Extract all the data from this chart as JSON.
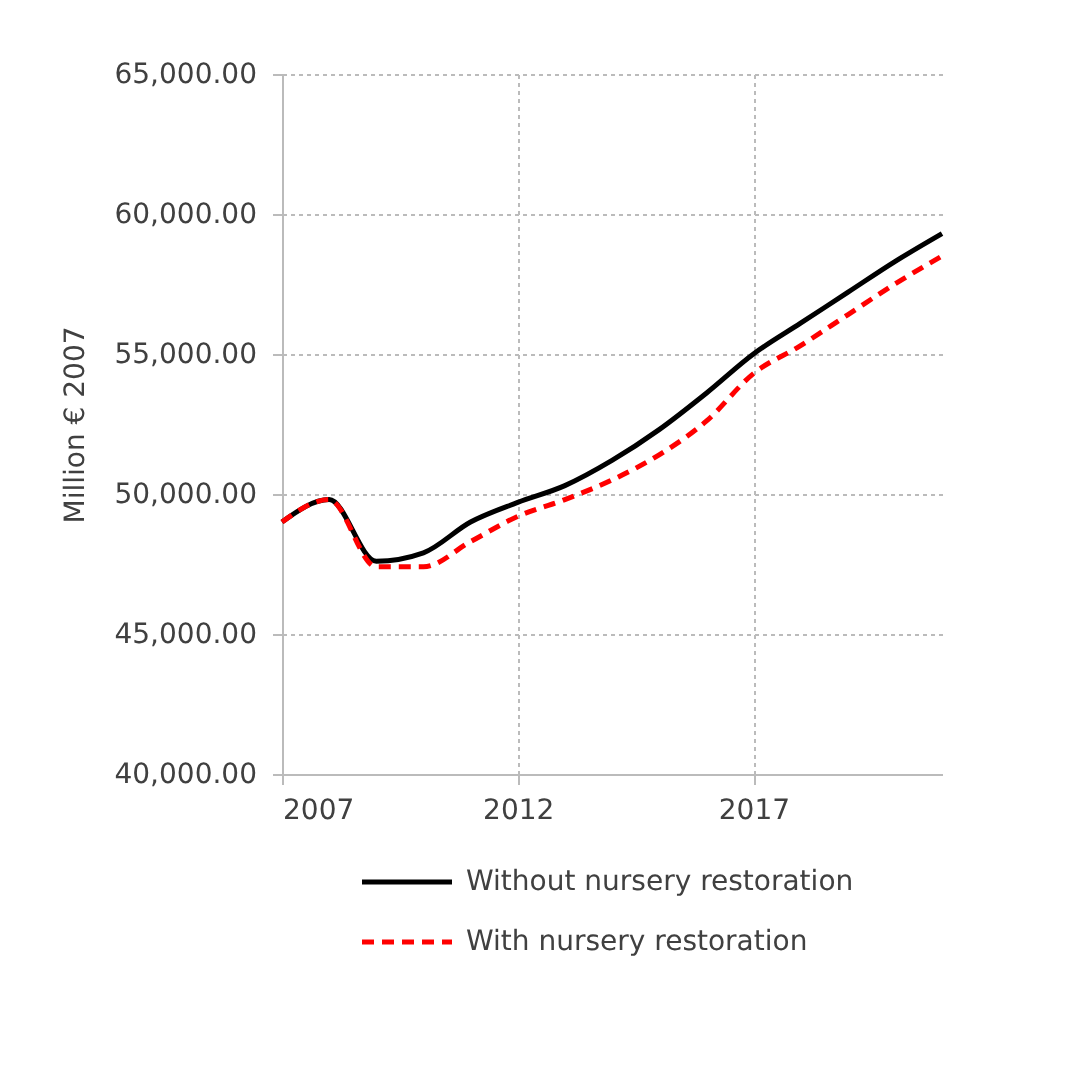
{
  "chart_data": {
    "type": "line",
    "ylabel": "Million € 2007",
    "x": [
      2007,
      2008,
      2009,
      2010,
      2011,
      2012,
      2013,
      2014,
      2015,
      2016,
      2017,
      2018,
      2019,
      2020,
      2021
    ],
    "series": [
      {
        "name": "Without nursery restoration",
        "color": "#000000",
        "line_style": "solid",
        "values": [
          49000,
          49800,
          47600,
          47900,
          49000,
          49700,
          50300,
          51200,
          52300,
          53600,
          55000,
          56100,
          57200,
          58300,
          59300
        ]
      },
      {
        "name": "With nursery restoration",
        "color": "#ff0000",
        "line_style": "dashed",
        "values": [
          49000,
          49800,
          47400,
          47400,
          48300,
          49200,
          49800,
          50500,
          51400,
          52600,
          54300,
          55300,
          56400,
          57500,
          58500
        ]
      }
    ],
    "xlim": [
      2007,
      2021
    ],
    "xticks": [
      2007,
      2012,
      2017
    ],
    "ylim": [
      40000,
      65000
    ],
    "yticks": [
      {
        "value": 40000,
        "label": "40,000.00"
      },
      {
        "value": 45000,
        "label": "45,000.00"
      },
      {
        "value": 50000,
        "label": "50,000.00"
      },
      {
        "value": 55000,
        "label": "55,000.00"
      },
      {
        "value": 60000,
        "label": "60,000.00"
      },
      {
        "value": 65000,
        "label": "65,000.00"
      }
    ],
    "grid": true,
    "legend": "bottom",
    "marker": "none"
  }
}
